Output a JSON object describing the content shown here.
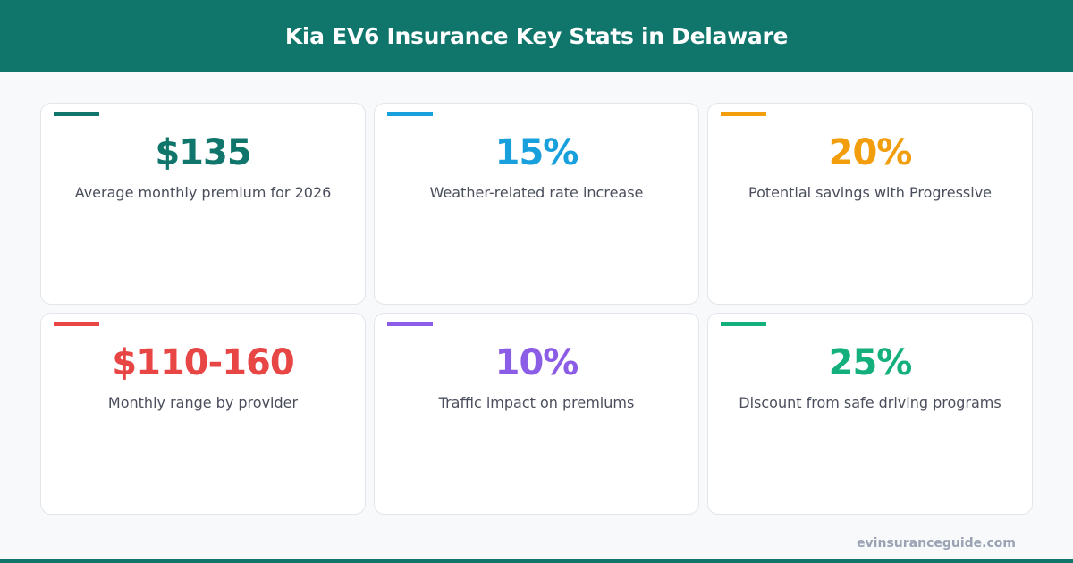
{
  "title": "Kia EV6 Insurance Key Stats in Delaware",
  "cards": [
    {
      "value": "$135",
      "label": "Average monthly premium for 2026",
      "color": "#10766c"
    },
    {
      "value": "15%",
      "label": "Weather-related rate increase",
      "color": "#18a0dc"
    },
    {
      "value": "20%",
      "label": "Potential savings with Progressive",
      "color": "#f29d0c"
    },
    {
      "value": "$110-160",
      "label": "Monthly range by provider",
      "color": "#e84545"
    },
    {
      "value": "10%",
      "label": "Traffic impact on premiums",
      "color": "#8b5ce6"
    },
    {
      "value": "25%",
      "label": "Discount from safe driving programs",
      "color": "#13b07e"
    }
  ],
  "footer": "evinsuranceguide.com"
}
